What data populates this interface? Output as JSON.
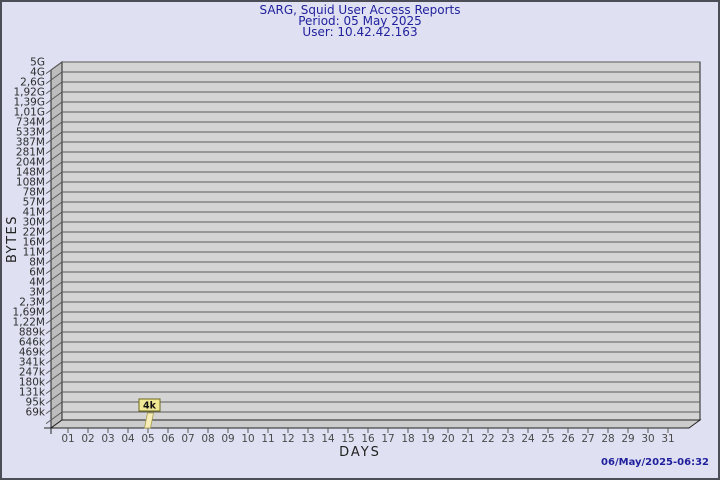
{
  "page": {
    "background": "#dfe1f3",
    "border_color": "#4d4d57"
  },
  "header": {
    "title": "SARG, Squid User Access Reports",
    "period": "Period: 05 May 2025",
    "user": "User: 10.42.42.163",
    "text_color": "#1f1f9c"
  },
  "footer": {
    "generated_at": "06/May/2025-06:32"
  },
  "chart_data": {
    "type": "bar",
    "title": "SARG, Squid User Access Reports",
    "subtitle": [
      "Period: 05 May 2025",
      "User: 10.42.42.163"
    ],
    "xlabel": "DAYS",
    "ylabel": "BYTES",
    "y_axis_scale": "logarithmic",
    "grid": true,
    "legend": "none",
    "x_tick_labels": [
      "01",
      "02",
      "03",
      "04",
      "05",
      "06",
      "07",
      "08",
      "09",
      "10",
      "11",
      "12",
      "13",
      "14",
      "15",
      "16",
      "17",
      "18",
      "19",
      "20",
      "21",
      "22",
      "23",
      "24",
      "25",
      "26",
      "27",
      "28",
      "29",
      "30",
      "31"
    ],
    "y_tick_labels": [
      "5G",
      "4G",
      "2,6G",
      "1,92G",
      "1,39G",
      "1,01G",
      "734M",
      "533M",
      "387M",
      "281M",
      "204M",
      "148M",
      "108M",
      "78M",
      "57M",
      "41M",
      "30M",
      "22M",
      "16M",
      "11M",
      "8M",
      "6M",
      "4M",
      "3M",
      "2,3M",
      "1,69M",
      "1,22M",
      "889k",
      "646k",
      "469k",
      "341k",
      "247k",
      "180k",
      "131k",
      "95k",
      "69k"
    ],
    "data_points": [
      {
        "x": "05",
        "label": "4k",
        "value_bytes": 4096
      }
    ],
    "colors": {
      "plot_bg": "#d4d4d4",
      "wall_bg": "#bdbdbd",
      "floor_bg": "#cccccc",
      "gridline": "#5a5a5a",
      "frame": "#222222",
      "y_tick_text": "#2e2e2e",
      "x_tick_text": "#4a4a4a",
      "bar_fill": "#f6eeb6",
      "bar_edge": "#a39a4a",
      "label_box_fill": "#f0e895",
      "label_box_edge": "#6e6a1e",
      "label_text": "#111111"
    }
  }
}
